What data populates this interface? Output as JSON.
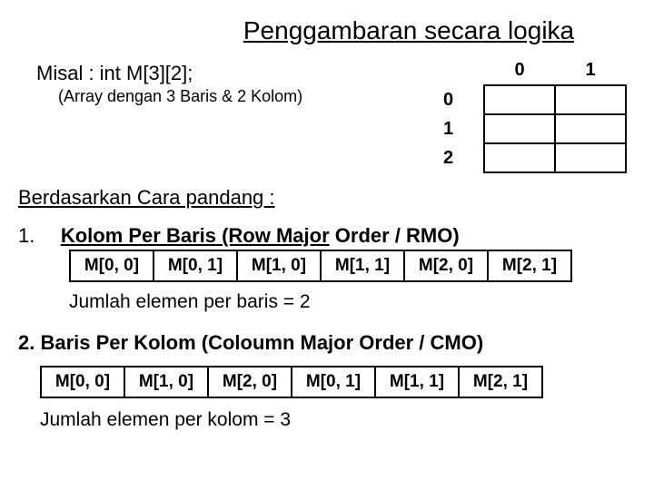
{
  "title": "Penggambaran secara logika",
  "declaration": {
    "line1": "Misal : int M[3][2];",
    "line2": "(Array dengan 3 Baris & 2 Kolom)"
  },
  "grid": {
    "col_headers": [
      "0",
      "1"
    ],
    "row_headers": [
      "0",
      "1",
      "2"
    ]
  },
  "section_header": "Berdasarkan Cara pandang :",
  "item1": {
    "num": "1.",
    "title_underlined": "Kolom Per Baris (Row Major",
    "title_rest": " Order / RMO)",
    "cells": [
      "M[0, 0]",
      "M[0, 1]",
      "M[1, 0]",
      "M[1, 1]",
      "M[2, 0]",
      "M[2, 1]"
    ],
    "summary": "Jumlah elemen per baris = 2"
  },
  "item2": {
    "title": "2. Baris Per Kolom (Coloumn Major Order / CMO)",
    "cells": [
      "M[0, 0]",
      "M[1, 0]",
      "M[2, 0]",
      "M[0, 1]",
      "M[1, 1]",
      "M[2, 1]"
    ],
    "summary": "Jumlah elemen per kolom = 3"
  }
}
